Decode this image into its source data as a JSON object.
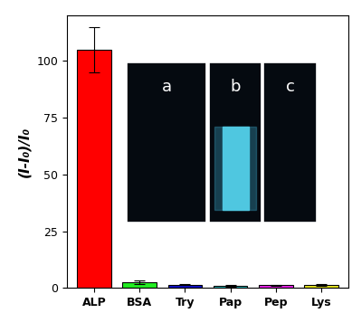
{
  "chart_data": {
    "type": "bar",
    "y_label": "(I-I₀)/I₀",
    "categories": [
      "ALP",
      "BSA",
      "Try",
      "Pap",
      "Pep",
      "Lys"
    ],
    "values": [
      105,
      2.5,
      1.5,
      1.0,
      1.2,
      1.5
    ],
    "errors": [
      10,
      0.8,
      0.3,
      0.3,
      0.3,
      0.4
    ],
    "colors": [
      "#ff0000",
      "#22ee22",
      "#1010cc",
      "#33cccc",
      "#ee22ee",
      "#eeee22"
    ],
    "ylim": [
      0,
      120
    ],
    "yticks": [
      0,
      25,
      50,
      75,
      100
    ],
    "annotations": [
      "a",
      "b",
      "c"
    ],
    "grid": false
  }
}
